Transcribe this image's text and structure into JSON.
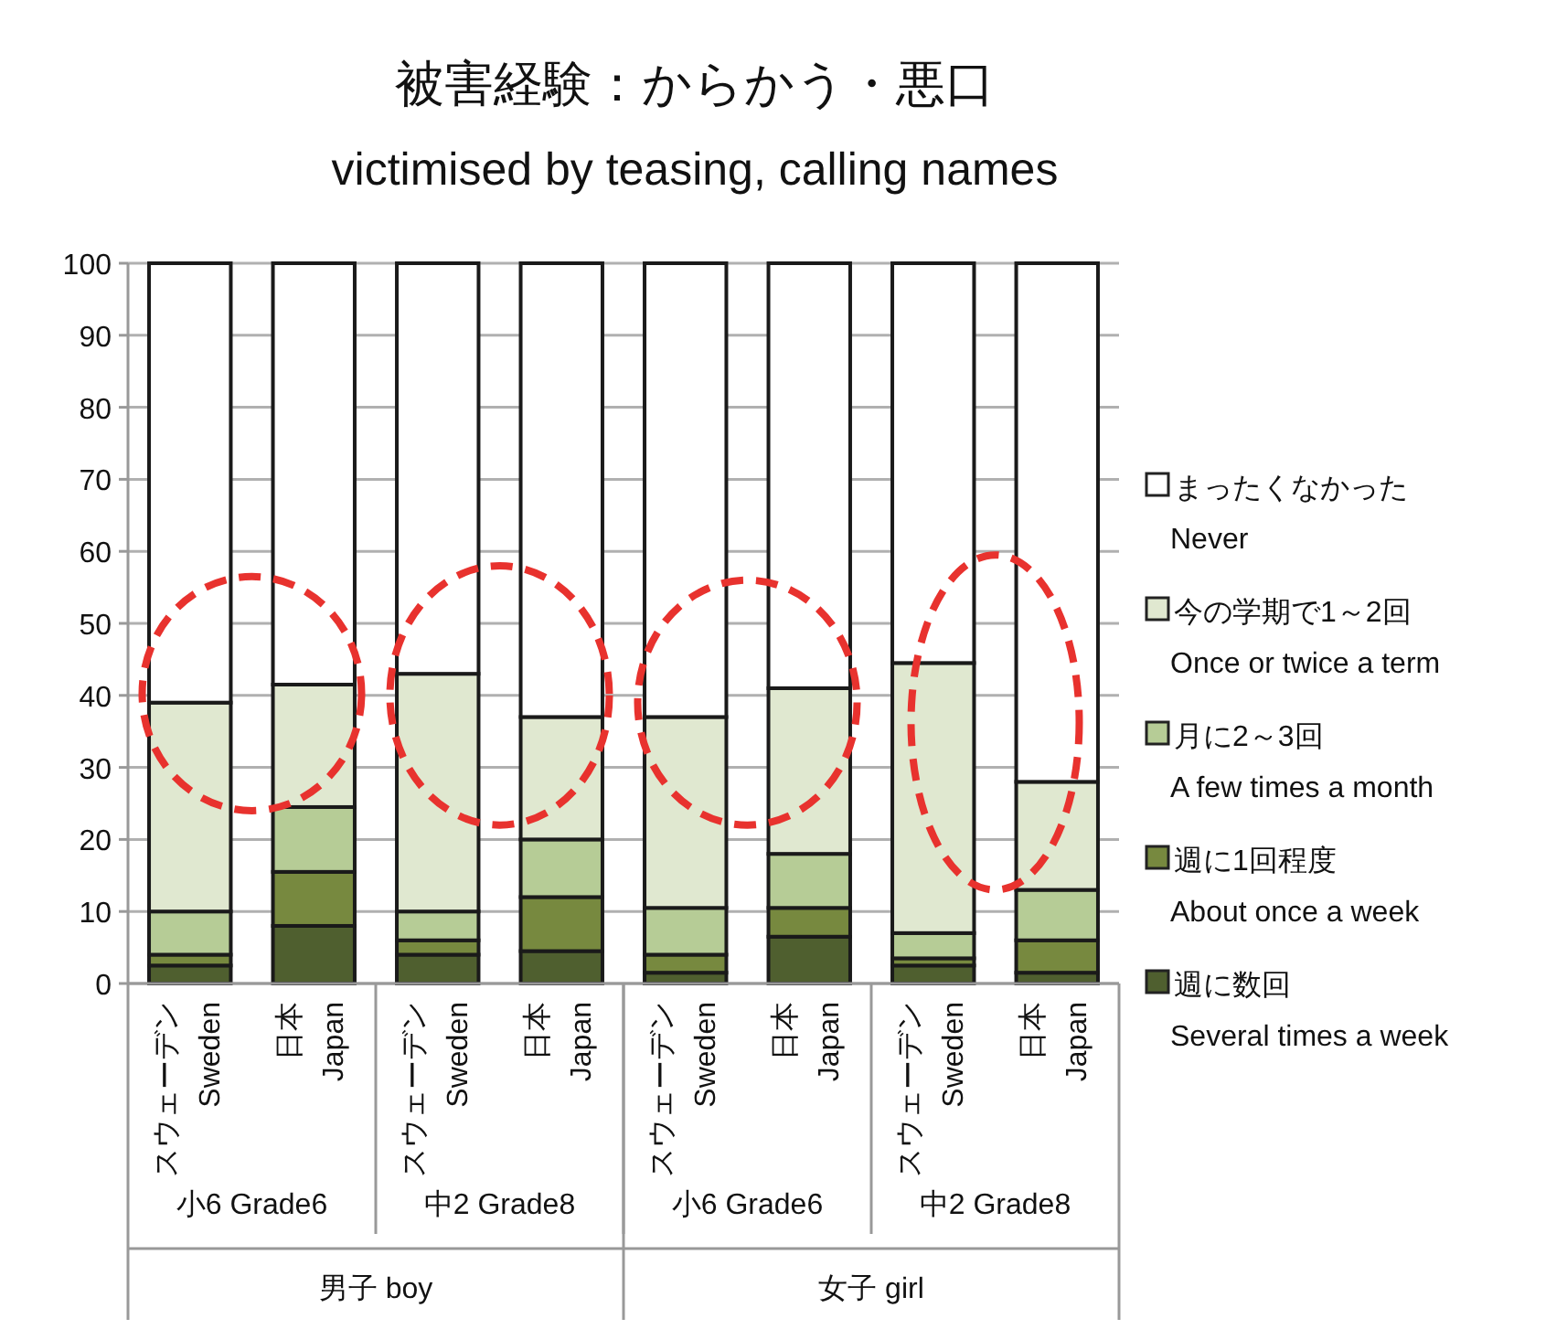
{
  "chart_data": {
    "type": "bar",
    "stacked": true,
    "title": "被害経験：からかう・悪口",
    "subtitle": "victimised by  teasing, calling names",
    "categories": [
      "スウェーデン Sweden",
      "日本 Japan",
      "スウェーデン Sweden",
      "日本 Japan",
      "スウェーデン Sweden",
      "日本 Japan",
      "スウェーデン Sweden",
      "日本 Japan"
    ],
    "annotations": [
      "小6 Grade6",
      "中2 Grade8",
      "小6 Grade6",
      "中2 Grade8",
      "男子 boy",
      "女子 girl"
    ],
    "series": [
      {
        "name": "週に数回\nSeveral times a week",
        "color": "#4f5f2f",
        "values": [
          2.5,
          8,
          4,
          4.5,
          1.5,
          6.5,
          2.5,
          1.5
        ]
      },
      {
        "name": "週に1回程度\nAbout once a week",
        "color": "#77893f",
        "values": [
          1.5,
          7.5,
          2,
          7.5,
          2.5,
          4,
          1,
          4.5
        ]
      },
      {
        "name": "月に2～3回\nA few times a month",
        "color": "#b6cc96",
        "values": [
          6,
          9,
          4,
          8,
          6.5,
          7.5,
          3.5,
          7
        ]
      },
      {
        "name": "今の学期で1～2回\nOnce or twice  a term",
        "color": "#e0e8d0",
        "values": [
          29,
          17,
          33,
          17,
          26.5,
          23,
          37.5,
          15
        ]
      },
      {
        "name": "まったくなかった\nNever",
        "color": "#ffffff",
        "values": [
          61,
          58.5,
          57,
          63,
          63,
          59,
          55.5,
          72
        ]
      }
    ],
    "ylim": [
      0,
      100
    ],
    "yticks": [
      0,
      10,
      20,
      30,
      40,
      50,
      60,
      70,
      80,
      90,
      100
    ],
    "grid": "y",
    "legend": "right"
  }
}
